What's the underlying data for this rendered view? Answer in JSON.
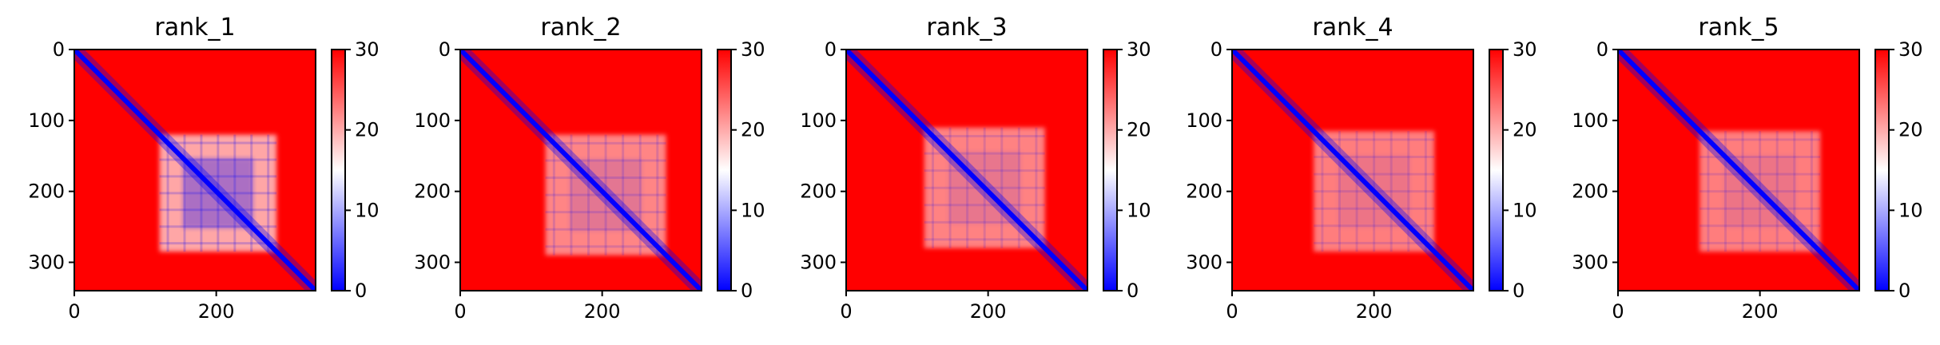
{
  "colors": {
    "low": "#0000ff",
    "mid": "#ffffff",
    "high": "#ff0000",
    "axis": "#000000"
  },
  "chart_data": [
    {
      "type": "heatmap",
      "title": "rank_1",
      "matrix_size": 340,
      "x_ticks": [
        "0",
        "200"
      ],
      "x_tick_values": [
        0,
        200
      ],
      "y_ticks": [
        "0",
        "100",
        "200",
        "300"
      ],
      "y_tick_values": [
        0,
        100,
        200,
        300
      ],
      "colorbar": {
        "cmap": "bwr",
        "vmin": 0,
        "vmax": 30,
        "ticks": [
          "0",
          "10",
          "20",
          "30"
        ]
      },
      "low_value_block": {
        "start": 120,
        "end": 285,
        "strength": 0.85
      }
    },
    {
      "type": "heatmap",
      "title": "rank_2",
      "matrix_size": 340,
      "x_ticks": [
        "0",
        "200"
      ],
      "x_tick_values": [
        0,
        200
      ],
      "y_ticks": [
        "0",
        "100",
        "200",
        "300"
      ],
      "y_tick_values": [
        0,
        100,
        200,
        300
      ],
      "colorbar": {
        "cmap": "bwr",
        "vmin": 0,
        "vmax": 30,
        "ticks": [
          "0",
          "10",
          "20",
          "30"
        ]
      },
      "low_value_block": {
        "start": 120,
        "end": 290,
        "strength": 0.5
      }
    },
    {
      "type": "heatmap",
      "title": "rank_3",
      "matrix_size": 340,
      "x_ticks": [
        "0",
        "200"
      ],
      "x_tick_values": [
        0,
        200
      ],
      "y_ticks": [
        "0",
        "100",
        "200",
        "300"
      ],
      "y_tick_values": [
        0,
        100,
        200,
        300
      ],
      "colorbar": {
        "cmap": "bwr",
        "vmin": 0,
        "vmax": 30,
        "ticks": [
          "0",
          "10",
          "20",
          "30"
        ]
      },
      "low_value_block": {
        "start": 110,
        "end": 280,
        "strength": 0.45
      }
    },
    {
      "type": "heatmap",
      "title": "rank_4",
      "matrix_size": 340,
      "x_ticks": [
        "0",
        "200"
      ],
      "x_tick_values": [
        0,
        200
      ],
      "y_ticks": [
        "0",
        "100",
        "200",
        "300"
      ],
      "y_tick_values": [
        0,
        100,
        200,
        300
      ],
      "colorbar": {
        "cmap": "bwr",
        "vmin": 0,
        "vmax": 30,
        "ticks": [
          "0",
          "10",
          "20",
          "30"
        ]
      },
      "low_value_block": {
        "start": 115,
        "end": 285,
        "strength": 0.4
      }
    },
    {
      "type": "heatmap",
      "title": "rank_5",
      "matrix_size": 340,
      "x_ticks": [
        "0",
        "200"
      ],
      "x_tick_values": [
        0,
        200
      ],
      "y_ticks": [
        "0",
        "100",
        "200",
        "300"
      ],
      "y_tick_values": [
        0,
        100,
        200,
        300
      ],
      "colorbar": {
        "cmap": "bwr",
        "vmin": 0,
        "vmax": 30,
        "ticks": [
          "0",
          "10",
          "20",
          "30"
        ]
      },
      "low_value_block": {
        "start": 115,
        "end": 285,
        "strength": 0.4
      }
    }
  ]
}
